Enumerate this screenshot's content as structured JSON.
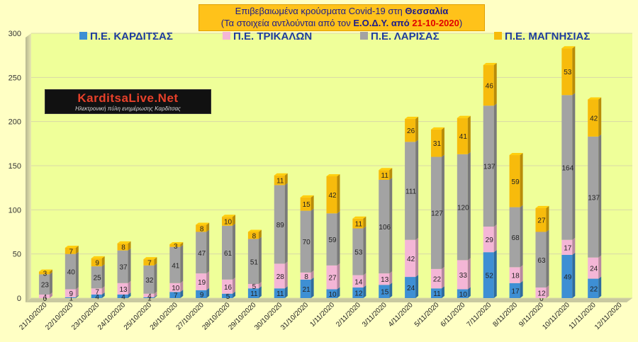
{
  "header": {
    "title_line1_prefix": "Επιβεβαιωμένα κρούσματα Covid-19 στη",
    "title_line1_region": "Θεσσαλία",
    "title_line2_prefix": "(Τα στοιχεία αντλούνται από τον",
    "title_line2_source": "Ε.Ο.Δ.Υ.",
    "title_line2_from": "από",
    "title_line2_date": "21-10-2020",
    "title_line2_suffix": ")"
  },
  "logo": {
    "main_text": "KarditsaLive.Net",
    "sub_text": "Ηλεκτρονική πύλη ενημέρωσης Καρδίτσας"
  },
  "chart_data": {
    "type": "bar",
    "stacked": true,
    "title": "Επιβεβαιωμένα κρούσματα Covid-19 στη Θεσσαλία (Τα στοιχεία αντλούνται από τον Ε.Ο.Δ.Υ. από 21-10-2020)",
    "xlabel": "",
    "ylabel": "",
    "ylim": [
      0,
      300
    ],
    "yticks": [
      0,
      50,
      100,
      150,
      200,
      250,
      300
    ],
    "grid": true,
    "legend_position": "top",
    "categories": [
      "21/10/2020",
      "22/10/2020",
      "23/10/2020",
      "24/10/2020",
      "25/10/2020",
      "26/10/2020",
      "27/10/2020",
      "28/10/2020",
      "29/10/2020",
      "30/10/2020",
      "31/10/2020",
      "1/11/2020",
      "2/11/2020",
      "3/11/2020",
      "4/11/2020",
      "5/11/2020",
      "6/11/2020",
      "7/11/2020",
      "8/11/2020",
      "9/11/2020",
      "10/11/2020",
      "11/11/2020",
      "12/11/2020"
    ],
    "series": [
      {
        "name": "Π.Ε. ΚΑΡΔΙΤΣΑΣ",
        "color": "#3e8fd4",
        "values": [
          0,
          1,
          4,
          4,
          1,
          7,
          9,
          5,
          11,
          11,
          21,
          10,
          12,
          15,
          24,
          11,
          10,
          52,
          17,
          0,
          49,
          22,
          null
        ]
      },
      {
        "name": "Π.Ε. ΤΡΙΚΑΛΩΝ",
        "color": "#f4b6d6",
        "values": [
          4,
          9,
          7,
          13,
          4,
          10,
          19,
          16,
          5,
          28,
          8,
          27,
          14,
          13,
          42,
          22,
          33,
          29,
          18,
          12,
          17,
          24,
          null
        ]
      },
      {
        "name": "Π.Ε. ΛΑΡΙΣΑΣ",
        "color": "#a3a3a3",
        "values": [
          23,
          40,
          25,
          37,
          32,
          41,
          47,
          61,
          51,
          89,
          70,
          59,
          53,
          106,
          111,
          127,
          120,
          137,
          68,
          63,
          164,
          137,
          null
        ]
      },
      {
        "name": "Π.Ε. ΜΑΓΝΗΣΙΑΣ",
        "color": "#f7bb0c",
        "values": [
          3,
          7,
          9,
          8,
          7,
          3,
          8,
          10,
          8,
          11,
          15,
          42,
          11,
          11,
          26,
          31,
          41,
          46,
          59,
          27,
          53,
          42,
          null
        ]
      }
    ]
  }
}
